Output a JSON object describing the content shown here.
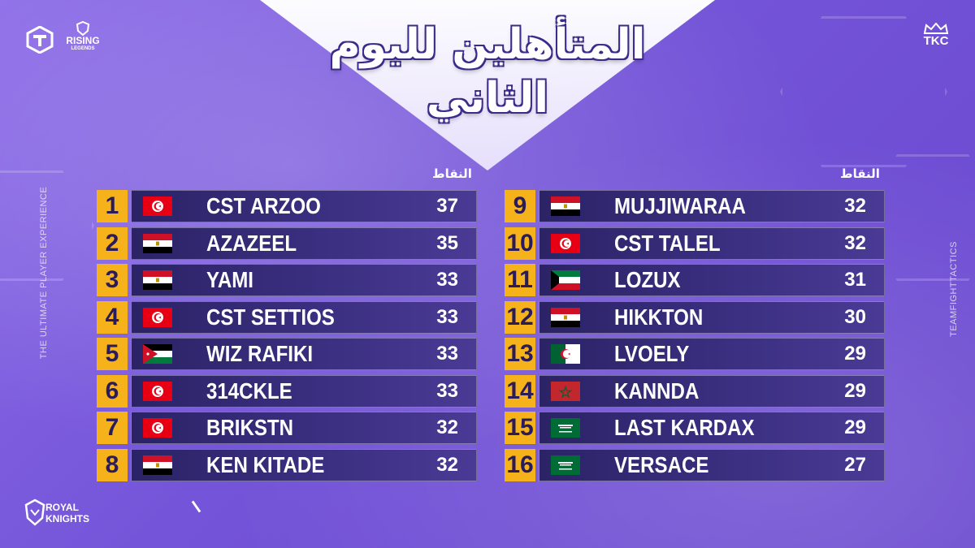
{
  "title": {
    "line1": "المتأهلين لليوم",
    "line2": "الثاني"
  },
  "points_header": "النقاط",
  "side_text_left": "THE ULTIMATE PLAYER EXPERIENCE",
  "side_text_right": "TEAMFIGHTTACTICS",
  "logos": {
    "rising_line1": "RISING",
    "rising_line2": "LEGENDS",
    "tkc": "TKC",
    "royal_line1": "ROYAL",
    "royal_line2": "KNIGHTS"
  },
  "colors": {
    "rank_bg": "#f5b21b",
    "bar_bg": "#2b2366",
    "background": "#7454d8"
  },
  "players": [
    {
      "rank": "1",
      "name": "CST ARZOO",
      "points": "37",
      "flag": "tunisia-flag-icon"
    },
    {
      "rank": "2",
      "name": "AZAZEEL",
      "points": "35",
      "flag": "egypt-flag-icon"
    },
    {
      "rank": "3",
      "name": "YAMI",
      "points": "33",
      "flag": "egypt-flag-icon"
    },
    {
      "rank": "4",
      "name": "CST SETTIOS",
      "points": "33",
      "flag": "tunisia-flag-icon"
    },
    {
      "rank": "5",
      "name": "WIZ RAFIKI",
      "points": "33",
      "flag": "jordan-flag-icon"
    },
    {
      "rank": "6",
      "name": "314CKLE",
      "points": "33",
      "flag": "tunisia-flag-icon"
    },
    {
      "rank": "7",
      "name": "BRIKSTN",
      "points": "32",
      "flag": "tunisia-flag-icon"
    },
    {
      "rank": "8",
      "name": "KEN KITADE",
      "points": "32",
      "flag": "egypt-flag-icon"
    },
    {
      "rank": "9",
      "name": "MUJJIWARAA",
      "points": "32",
      "flag": "egypt-flag-icon"
    },
    {
      "rank": "10",
      "name": "CST TALEL",
      "points": "32",
      "flag": "tunisia-flag-icon"
    },
    {
      "rank": "11",
      "name": "LOZUX",
      "points": "31",
      "flag": "kuwait-flag-icon"
    },
    {
      "rank": "12",
      "name": "HIKKTON",
      "points": "30",
      "flag": "egypt-flag-icon"
    },
    {
      "rank": "13",
      "name": "LVOELY",
      "points": "29",
      "flag": "algeria-flag-icon"
    },
    {
      "rank": "14",
      "name": "KANNDA",
      "points": "29",
      "flag": "morocco-flag-icon"
    },
    {
      "rank": "15",
      "name": "LAST KARDAX",
      "points": "29",
      "flag": "saudi-flag-icon"
    },
    {
      "rank": "16",
      "name": "VERSACE",
      "points": "27",
      "flag": "saudi-flag-icon"
    }
  ]
}
